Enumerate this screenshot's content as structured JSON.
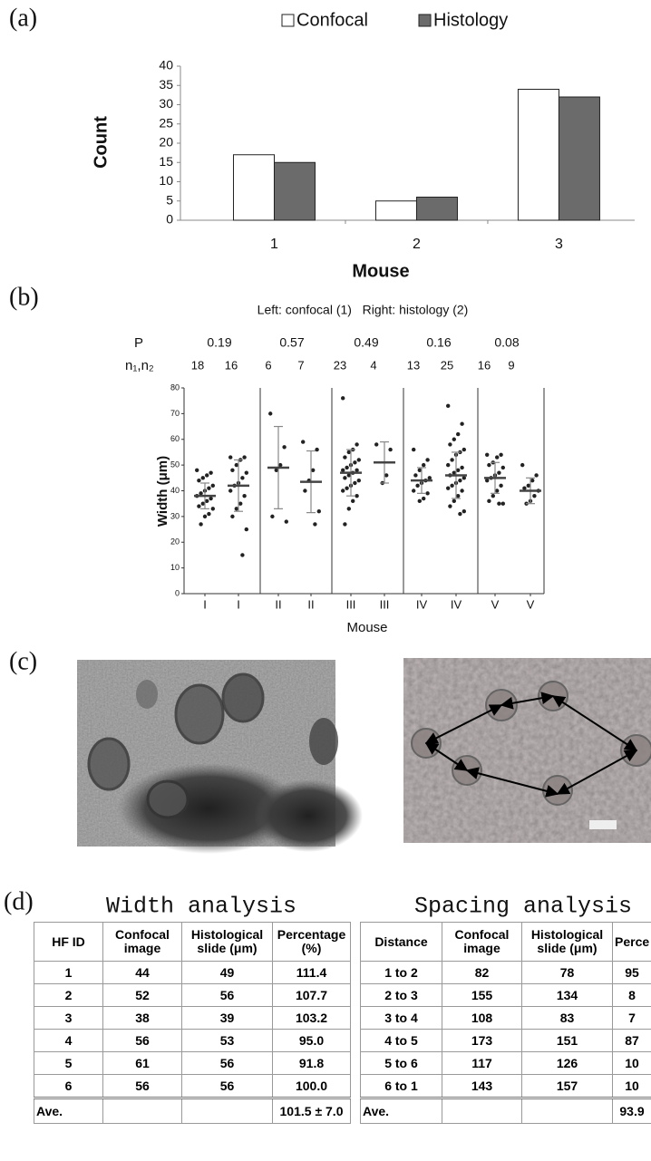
{
  "panel_labels": [
    "(a)",
    "(b)",
    "(c)",
    "(d)"
  ],
  "chart_data": [
    {
      "type": "bar",
      "x_label": "Mouse",
      "y_label": "Count",
      "categories": [
        "1",
        "2",
        "3"
      ],
      "series": [
        {
          "name": "Confocal",
          "color": "#ffffff",
          "values": [
            17,
            5,
            34
          ]
        },
        {
          "name": "Histology",
          "color": "#6b6b6b",
          "values": [
            15,
            6,
            32
          ]
        }
      ],
      "ylim": [
        0,
        40
      ],
      "yticks": [
        0,
        5,
        10,
        15,
        20,
        25,
        30,
        35,
        40
      ],
      "legend": "top"
    },
    {
      "type": "dot",
      "title": "Left: confocal (1)   Right: histology (2)",
      "p_label": "P",
      "p_values": [
        0.19,
        0.57,
        0.49,
        0.16,
        0.08
      ],
      "n_label": "n₁,n₂",
      "n_values": [
        [
          18,
          16
        ],
        [
          6,
          7
        ],
        [
          23,
          4
        ],
        [
          13,
          25
        ],
        [
          16,
          9
        ]
      ],
      "x_label": "Mouse",
      "y_label": "Width (μm)",
      "ylim": [
        0,
        80
      ],
      "yticks": [
        0,
        10,
        20,
        30,
        40,
        50,
        60,
        70,
        80
      ],
      "columns": [
        {
          "category": "I",
          "mean": 38,
          "sd": 5,
          "values": [
            48,
            47,
            46,
            45,
            44,
            42,
            41,
            40,
            39,
            38,
            37,
            36,
            35,
            34,
            33,
            31,
            30,
            27
          ]
        },
        {
          "category": "I",
          "mean": 42,
          "sd": 10,
          "values": [
            53,
            53,
            52,
            50,
            48,
            47,
            45,
            43,
            42,
            40,
            38,
            35,
            33,
            30,
            25,
            15
          ]
        },
        {
          "category": "II",
          "mean": 49,
          "sd": 16,
          "values": [
            70,
            57,
            50,
            48,
            30,
            28
          ]
        },
        {
          "category": "II",
          "mean": 43.5,
          "sd": 12,
          "values": [
            59,
            56,
            48,
            44,
            40,
            32,
            27
          ]
        },
        {
          "category": "III",
          "mean": 47,
          "sd": 9,
          "values": [
            76,
            58,
            56,
            55,
            53,
            52,
            51,
            50,
            49,
            48,
            48,
            47,
            46,
            45,
            44,
            43,
            42,
            41,
            40,
            38,
            36,
            33,
            27
          ]
        },
        {
          "category": "III",
          "mean": 51,
          "sd": 8,
          "values": [
            58,
            56,
            46,
            43
          ]
        },
        {
          "category": "IV",
          "mean": 44,
          "sd": 5,
          "values": [
            56,
            52,
            50,
            48,
            46,
            45,
            44,
            43,
            42,
            40,
            39,
            37,
            36
          ]
        },
        {
          "category": "IV",
          "mean": 46,
          "sd": 9,
          "values": [
            73,
            66,
            62,
            60,
            58,
            56,
            55,
            54,
            52,
            50,
            49,
            48,
            47,
            46,
            45,
            44,
            43,
            42,
            41,
            40,
            38,
            36,
            34,
            32,
            31
          ]
        },
        {
          "category": "V",
          "mean": 45,
          "sd": 6,
          "values": [
            54,
            54,
            53,
            51,
            50,
            49,
            47,
            46,
            45,
            44,
            42,
            40,
            38,
            36,
            35,
            35
          ]
        },
        {
          "category": "V",
          "mean": 40,
          "sd": 5,
          "values": [
            50,
            46,
            44,
            42,
            41,
            40,
            38,
            36,
            35
          ]
        }
      ]
    }
  ],
  "width_table": {
    "title": "Width analysis",
    "headers": [
      "HF ID",
      "Confocal image",
      "Histological slide (μm)",
      "Percentage (%)"
    ],
    "rows": [
      [
        "1",
        "44",
        "49",
        "111.4"
      ],
      [
        "2",
        "52",
        "56",
        "107.7"
      ],
      [
        "3",
        "38",
        "39",
        "103.2"
      ],
      [
        "4",
        "56",
        "53",
        "95.0"
      ],
      [
        "5",
        "61",
        "56",
        "91.8"
      ],
      [
        "6",
        "56",
        "56",
        "100.0"
      ]
    ],
    "average": {
      "label": "Ave.",
      "value": "101.5 ± 7.0"
    }
  },
  "spacing_table": {
    "title": "Spacing analysis",
    "headers": [
      "Distance",
      "Confocal image",
      "Histological slide (μm)",
      "Perce"
    ],
    "rows": [
      [
        "1 to 2",
        "82",
        "78",
        "95"
      ],
      [
        "2 to 3",
        "155",
        "134",
        "8"
      ],
      [
        "3 to 4",
        "108",
        "83",
        "7"
      ],
      [
        "4 to 5",
        "173",
        "151",
        "87"
      ],
      [
        "5 to 6",
        "117",
        "126",
        "10"
      ],
      [
        "6 to 1",
        "143",
        "157",
        "10"
      ]
    ],
    "average": {
      "label": "Ave.",
      "value": "93.9"
    }
  }
}
